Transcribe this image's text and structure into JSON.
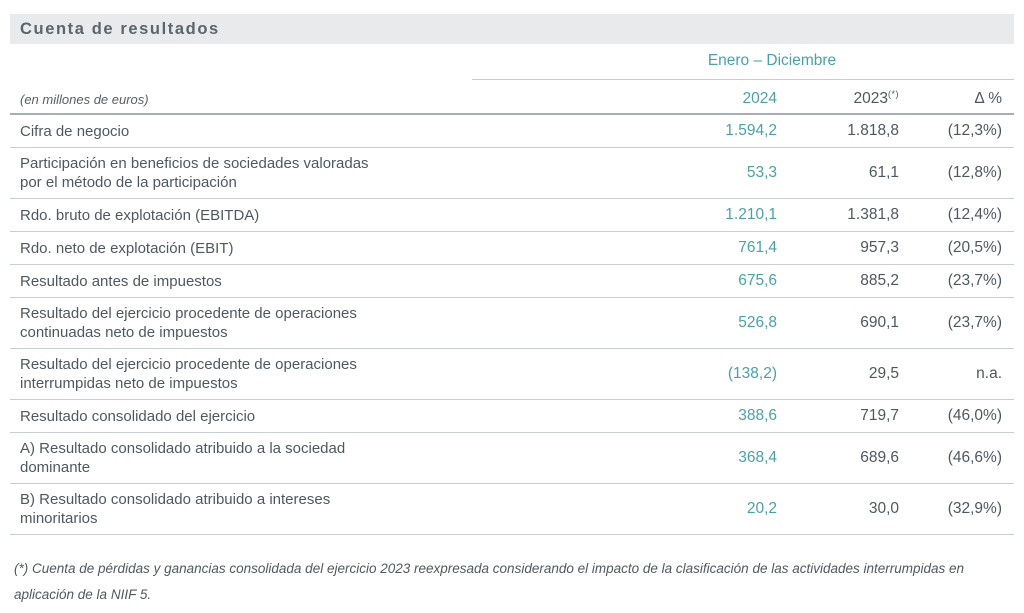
{
  "header": {
    "title": "Cuenta de resultados"
  },
  "table": {
    "period_header": "Enero – Diciembre",
    "units_label": "(en millones de euros)",
    "columns": {
      "y2024": "2024",
      "y2023": "2023",
      "y2023_sup": "(*)",
      "delta": "Δ %"
    },
    "rows": [
      {
        "label1": "Cifra de negocio",
        "label2": "",
        "v2024": "1.594,2",
        "v2023": "1.818,8",
        "delta": "(12,3%)"
      },
      {
        "label1": "Participación en beneficios de sociedades valoradas",
        "label2": "por el método de la participación",
        "v2024": "53,3",
        "v2023": "61,1",
        "delta": "(12,8%)"
      },
      {
        "label1": "Rdo. bruto de explotación (EBITDA)",
        "label2": "",
        "v2024": "1.210,1",
        "v2023": "1.381,8",
        "delta": "(12,4%)"
      },
      {
        "label1": "Rdo. neto de explotación (EBIT)",
        "label2": "",
        "v2024": "761,4",
        "v2023": "957,3",
        "delta": "(20,5%)"
      },
      {
        "label1": "Resultado antes de impuestos",
        "label2": "",
        "v2024": "675,6",
        "v2023": "885,2",
        "delta": "(23,7%)"
      },
      {
        "label1": "Resultado del ejercicio procedente de operaciones",
        "label2": "continuadas neto de impuestos",
        "v2024": "526,8",
        "v2023": "690,1",
        "delta": "(23,7%)"
      },
      {
        "label1": "Resultado del ejercicio procedente de operaciones",
        "label2": "interrumpidas neto de impuestos",
        "v2024": "(138,2)",
        "v2023": "29,5",
        "delta": "n.a."
      },
      {
        "label1": "Resultado consolidado del ejercicio",
        "label2": "",
        "v2024": "388,6",
        "v2023": "719,7",
        "delta": "(46,0%)"
      },
      {
        "label1": "A) Resultado consolidado atribuido a la sociedad",
        "label2": "dominante",
        "v2024": "368,4",
        "v2023": "689,6",
        "delta": "(46,6%)"
      },
      {
        "label1": "B) Resultado consolidado atribuido a intereses",
        "label2": "minoritarios",
        "v2024": "20,2",
        "v2023": "30,0",
        "delta": "(32,9%)"
      }
    ]
  },
  "footnote": {
    "line1": "(*) Cuenta de pérdidas y ganancias consolidada del ejercicio 2023 reexpresada considerando el impacto de la clasificación de las actividades interrumpidas en",
    "line2": "aplicación de la NIIF 5."
  },
  "colors": {
    "accent_teal": "#4BA1A6",
    "text_dark": "#4E5860",
    "title_bar_bg": "#E8EAEB",
    "title_text": "#5A656F",
    "row_border": "#C9CED2",
    "header_border": "#A7AEB4"
  }
}
